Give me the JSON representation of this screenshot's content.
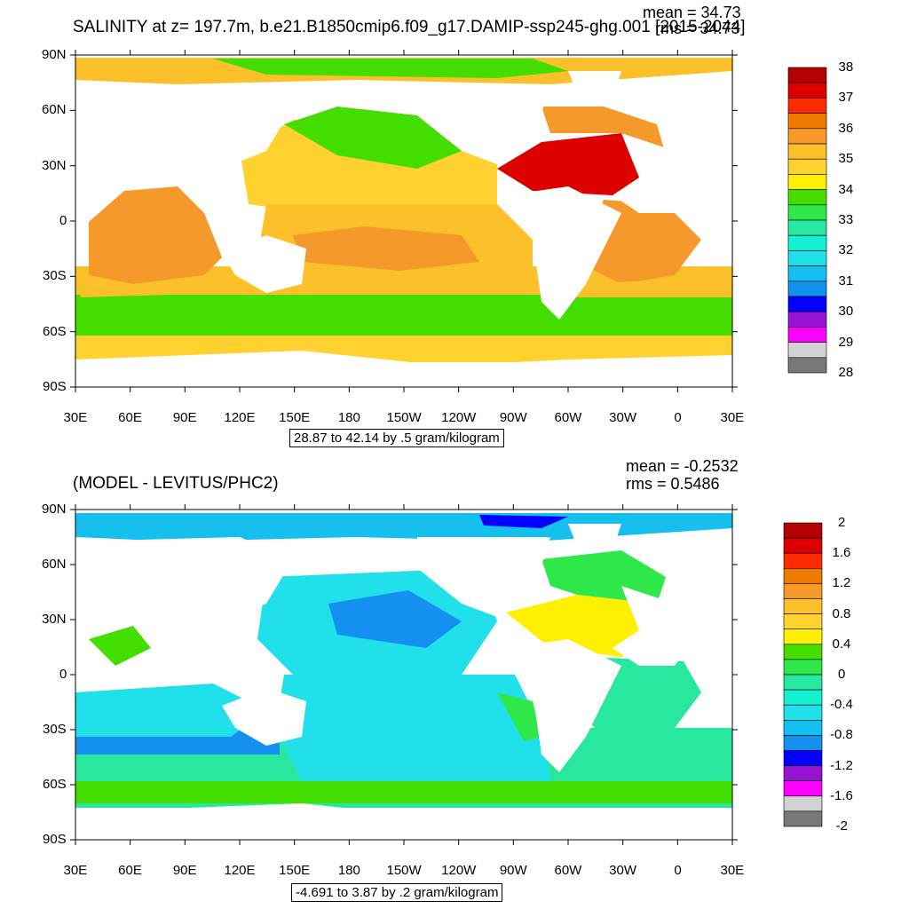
{
  "top": {
    "title": "SALINITY at z= 197.7m, b.e21.B1850cmip6.f09_g17.DAMIP-ssp245-ghg.001 [2015-2044]",
    "mean": "mean = 34.73",
    "rms": "rms = 34.73",
    "note": "28.87 to 42.14 by .5 gram/kilogram",
    "colorbar": {
      "labels": [
        "38",
        "37",
        "36",
        "35",
        "34",
        "33",
        "32",
        "31",
        "30",
        "29",
        "28"
      ],
      "colors": [
        "#b40000",
        "#dc0000",
        "#ff2a00",
        "#f07a00",
        "#f59a2a",
        "#fbc02a",
        "#ffd230",
        "#fff000",
        "#44dd00",
        "#2ee84a",
        "#28e8a0",
        "#14f0d2",
        "#20e0ea",
        "#16c0ee",
        "#1490f0",
        "#0000ff",
        "#9414d2",
        "#ff00ff",
        "#d2d2d2",
        "#787878"
      ]
    }
  },
  "bottom": {
    "title": "(MODEL - LEVITUS/PHC2)",
    "mean": "mean = -0.2532",
    "rms": "rms = 0.5486",
    "note": "-4.691 to 3.87 by .2 gram/kilogram",
    "colorbar": {
      "labels": [
        "2",
        "1.6",
        "1.2",
        "0.8",
        "0.4",
        "0",
        "-0.4",
        "-0.8",
        "-1.2",
        "-1.6",
        "-2"
      ],
      "colors": [
        "#b40000",
        "#dc0000",
        "#ff2a00",
        "#f07a00",
        "#f59a2a",
        "#fbc02a",
        "#ffd230",
        "#fff000",
        "#44dd00",
        "#2ee84a",
        "#28e8a0",
        "#14f0d2",
        "#20e0ea",
        "#16c0ee",
        "#1490f0",
        "#0000ff",
        "#9414d2",
        "#ff00ff",
        "#d2d2d2",
        "#787878"
      ]
    }
  },
  "axes": {
    "lat_labels": [
      "90N",
      "60N",
      "30N",
      "0",
      "30S",
      "60S",
      "90S"
    ],
    "lon_labels": [
      "30E",
      "60E",
      "90E",
      "120E",
      "150E",
      "180",
      "150W",
      "120W",
      "90W",
      "60W",
      "30W",
      "0",
      "30E"
    ]
  },
  "map_colors": {
    "ocean_high": "#ffd230",
    "ocean_mid": "#fbc02a",
    "ocean_green": "#44dd00",
    "ocean_bright_green": "#2ee84a",
    "ocean_orange": "#f59a2a",
    "ocean_red": "#dc0000",
    "diff_cyan": "#20e0ea",
    "diff_blue": "#1490f0",
    "diff_light": "#28e8a0",
    "diff_green": "#2ee84a",
    "land": "#ffffff"
  }
}
